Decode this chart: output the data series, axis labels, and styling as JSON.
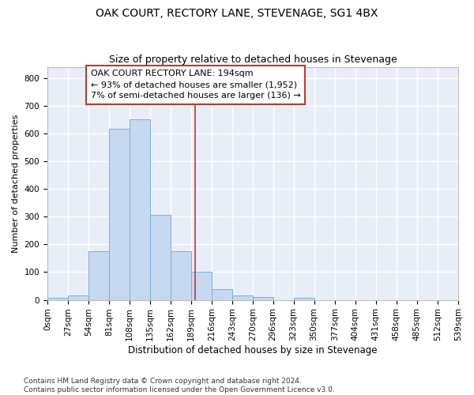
{
  "title": "OAK COURT, RECTORY LANE, STEVENAGE, SG1 4BX",
  "subtitle": "Size of property relative to detached houses in Stevenage",
  "xlabel": "Distribution of detached houses by size in Stevenage",
  "ylabel": "Number of detached properties",
  "bin_edges": [
    0,
    27,
    54,
    81,
    108,
    135,
    162,
    189,
    216,
    243,
    270,
    296,
    323,
    350,
    377,
    404,
    431,
    458,
    485,
    512,
    539
  ],
  "bar_heights": [
    8,
    15,
    175,
    618,
    650,
    305,
    175,
    100,
    40,
    15,
    10,
    0,
    8,
    0,
    0,
    0,
    0,
    0,
    0,
    0
  ],
  "bar_color": "#c6d9f0",
  "bar_edge_color": "#7bafd4",
  "background_color": "#e8eef8",
  "grid_color": "#ffffff",
  "vline_x": 194,
  "vline_color": "#c0392b",
  "annotation_line1": "OAK COURT RECTORY LANE: 194sqm",
  "annotation_line2": "← 93% of detached houses are smaller (1,952)",
  "annotation_line3": "7% of semi-detached houses are larger (136) →",
  "annotation_box_color": "#c0392b",
  "ylim": [
    0,
    840
  ],
  "yticks": [
    0,
    100,
    200,
    300,
    400,
    500,
    600,
    700,
    800
  ],
  "tick_labels": [
    "0sqm",
    "27sqm",
    "54sqm",
    "81sqm",
    "108sqm",
    "135sqm",
    "162sqm",
    "189sqm",
    "216sqm",
    "243sqm",
    "270sqm",
    "296sqm",
    "323sqm",
    "350sqm",
    "377sqm",
    "404sqm",
    "431sqm",
    "458sqm",
    "485sqm",
    "512sqm",
    "539sqm"
  ],
  "footer_text": "Contains HM Land Registry data © Crown copyright and database right 2024.\nContains public sector information licensed under the Open Government Licence v3.0.",
  "title_fontsize": 10,
  "subtitle_fontsize": 9,
  "xlabel_fontsize": 8.5,
  "ylabel_fontsize": 8,
  "tick_fontsize": 7.5,
  "annotation_fontsize": 8,
  "footer_fontsize": 6.5
}
